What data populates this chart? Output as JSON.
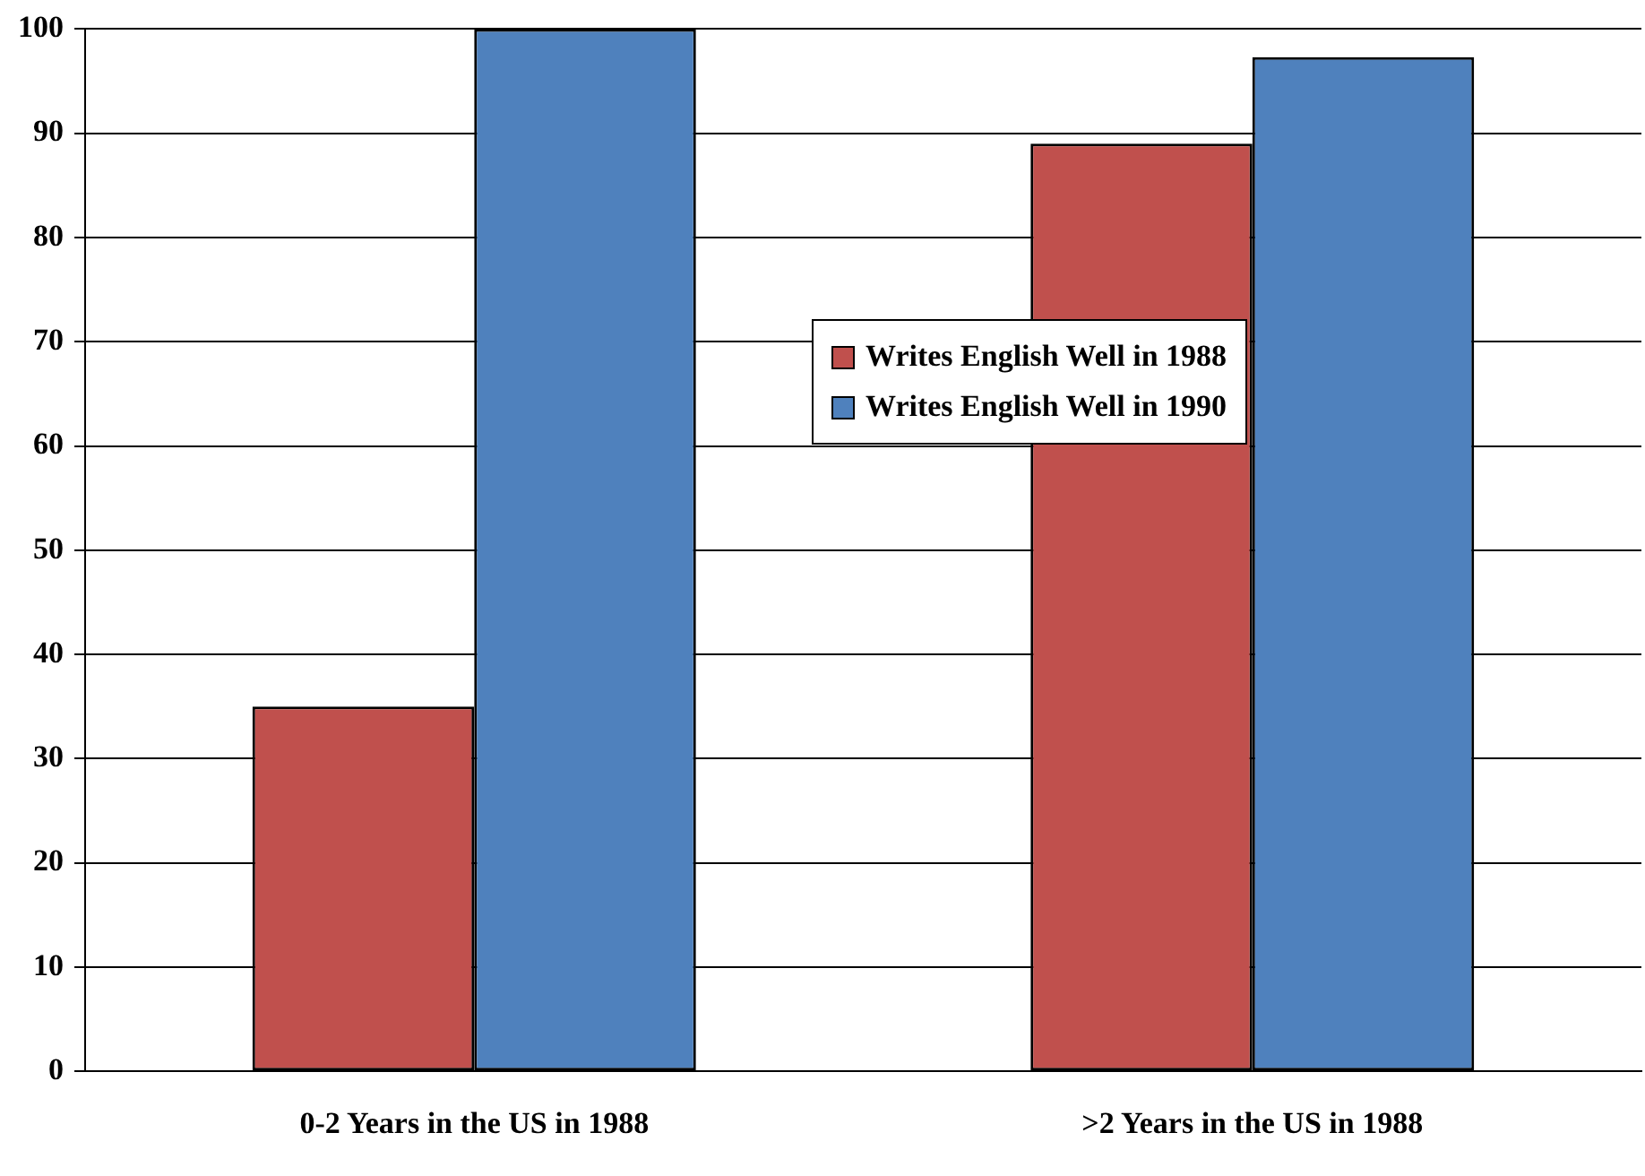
{
  "chart_data": {
    "type": "bar",
    "categories": [
      "0-2 Years in the US in 1988",
      ">2 Years in the US in 1988"
    ],
    "series": [
      {
        "name": "Writes English Well in 1988",
        "color": "#c0504d",
        "values": [
          35,
          89
        ]
      },
      {
        "name": "Writes English Well in 1990",
        "color": "#4f81bd",
        "values": [
          100,
          97.3
        ]
      }
    ],
    "ylim": [
      0,
      100
    ],
    "yticks": [
      0,
      10,
      20,
      30,
      40,
      50,
      60,
      70,
      80,
      90,
      100
    ],
    "grid": "y",
    "legend": "center"
  }
}
